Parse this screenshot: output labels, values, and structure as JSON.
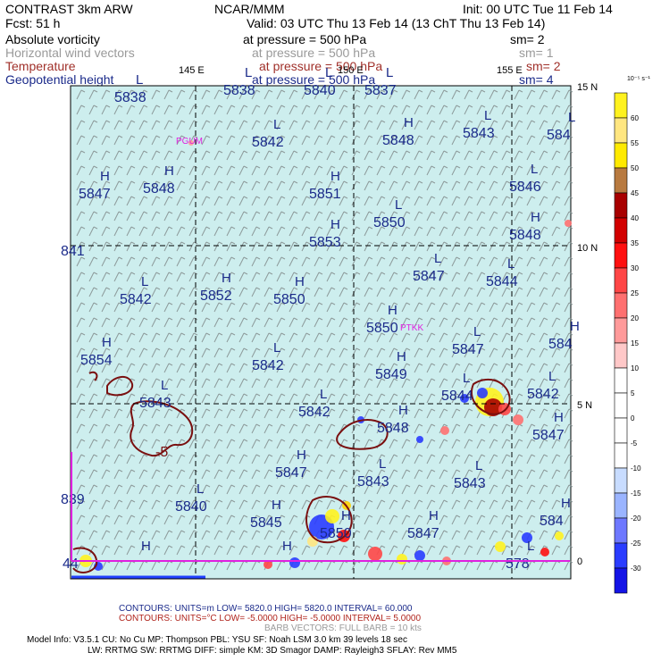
{
  "header": {
    "left_title": "CONTRAST  3km ARW",
    "center_title": "NCAR/MMM",
    "init": "Init: 00 UTC Tue 11 Feb 14",
    "fcst": "Fcst:    51 h",
    "valid": "Valid: 03 UTC Thu 13 Feb 14 (13 ChT Thu 13 Feb 14)"
  },
  "fields": [
    {
      "name": "Absolute vorticity",
      "pressure": "at pressure =  500 hPa",
      "sm": "sm= 2",
      "color": "#000000"
    },
    {
      "name": "Horizontal wind vectors",
      "pressure": "at pressure =  500 hPa",
      "sm": "sm= 1",
      "color": "#9a9a9a"
    },
    {
      "name": "Temperature",
      "pressure": "at pressure =  500 hPa",
      "sm": "sm= 2",
      "color": "#a0302a"
    },
    {
      "name": "Geopotential height",
      "pressure": "at pressure =  500 hPa",
      "sm": "sm= 4",
      "color": "#1a2a8a"
    }
  ],
  "map": {
    "background_color": "#cdeeee",
    "lon_labels": [
      "145 E",
      "150 E",
      "155 E"
    ],
    "lat_labels": [
      "15 N",
      "10 N",
      "5 N",
      "0"
    ],
    "stations": [
      "PGUM",
      "PTKK"
    ],
    "contour_label": "-5",
    "height_centers": [
      {
        "t": "L",
        "v": "5838"
      },
      {
        "t": "L",
        "v": "5838"
      },
      {
        "t": "L",
        "v": "5840"
      },
      {
        "t": "L",
        "v": "5837"
      },
      {
        "t": "L",
        "v": "5842"
      },
      {
        "t": "H",
        "v": "5848"
      },
      {
        "t": "L",
        "v": "5843"
      },
      {
        "t": "L",
        "v": "584"
      },
      {
        "t": "H",
        "v": "5847"
      },
      {
        "t": "H",
        "v": "5848"
      },
      {
        "t": "H",
        "v": "5851"
      },
      {
        "t": "L",
        "v": "5846"
      },
      {
        "t": "H",
        "v": "5853"
      },
      {
        "t": "L",
        "v": "5850"
      },
      {
        "t": "H",
        "v": "5848"
      },
      {
        "t": "",
        "v": "841"
      },
      {
        "t": "L",
        "v": "5847"
      },
      {
        "t": "L",
        "v": "5844"
      },
      {
        "t": "L",
        "v": "5842"
      },
      {
        "t": "H",
        "v": "5852"
      },
      {
        "t": "H",
        "v": "5850"
      },
      {
        "t": "H",
        "v": "5850"
      },
      {
        "t": "H",
        "v": "5854"
      },
      {
        "t": "L",
        "v": "5842"
      },
      {
        "t": "H",
        "v": "5849"
      },
      {
        "t": "L",
        "v": "5847"
      },
      {
        "t": "H",
        "v": "584"
      },
      {
        "t": "L",
        "v": "5844"
      },
      {
        "t": "L",
        "v": "5842"
      },
      {
        "t": "L",
        "v": "5843"
      },
      {
        "t": "L",
        "v": "5842"
      },
      {
        "t": "H",
        "v": "5848"
      },
      {
        "t": "H",
        "v": "5847"
      },
      {
        "t": "H",
        "v": "5847"
      },
      {
        "t": "L",
        "v": "5843"
      },
      {
        "t": "L",
        "v": "5843"
      },
      {
        "t": "",
        "v": "839"
      },
      {
        "t": "L",
        "v": "5840"
      },
      {
        "t": "H",
        "v": "5845"
      },
      {
        "t": "H",
        "v": "5850"
      },
      {
        "t": "H",
        "v": "5847"
      },
      {
        "t": "H",
        "v": "584"
      },
      {
        "t": "",
        "v": "44"
      },
      {
        "t": "H",
        "v": ""
      },
      {
        "t": "H",
        "v": ""
      },
      {
        "t": "L",
        "v": "578"
      }
    ]
  },
  "colorbar": {
    "unit": "10⁻⁵ s⁻¹",
    "levels": [
      {
        "label": "60",
        "color": "#fff21f"
      },
      {
        "label": "55",
        "color": "#ffe680"
      },
      {
        "label": "50",
        "color": "#ffea00"
      },
      {
        "label": "45",
        "color": "#b87a40"
      },
      {
        "label": "40",
        "color": "#a80000"
      },
      {
        "label": "35",
        "color": "#d20000"
      },
      {
        "label": "30",
        "color": "#ff1010"
      },
      {
        "label": "25",
        "color": "#ff4646"
      },
      {
        "label": "20",
        "color": "#ff7070"
      },
      {
        "label": "15",
        "color": "#ff9a9a"
      },
      {
        "label": "10",
        "color": "#ffc8c8"
      },
      {
        "label": "5",
        "color": "#ffffff"
      },
      {
        "label": "0",
        "color": "#ffffff"
      },
      {
        "label": "-5",
        "color": "#ffffff"
      },
      {
        "label": "-10",
        "color": "#ffffff"
      },
      {
        "label": "-15",
        "color": "#c8dcff"
      },
      {
        "label": "-20",
        "color": "#9ab4ff"
      },
      {
        "label": "-25",
        "color": "#6e78ff"
      },
      {
        "label": "-30",
        "color": "#2a3cff"
      },
      {
        "label": "",
        "color": "#1414e6"
      }
    ]
  },
  "footer": {
    "contours1": "CONTOURS:  UNITS=m   LOW=   5820.0         HIGH=   5820.0          INTERVAL=    60.000",
    "contours2": "CONTOURS:  UNITS=°C  LOW= -5.0000         HIGH= -5.0000          INTERVAL=    5.0000",
    "barb": "BARB VECTORS:  FULL BARB = 10 kts",
    "model1": "Model Info: V3.5.1     CU: No Cu     MP: Thompson     PBL: YSU       SF: Noah LSM     3.0 km   39 levels    18 sec",
    "model2": "LW: RRTMG   SW: RRTMG   DIFF: simple KM: 3D Smagor DAMP: Rayleigh3  SFLAY: Rev MM5"
  }
}
